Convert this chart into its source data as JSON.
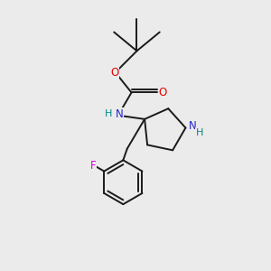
{
  "background_color": "#ebebeb",
  "bond_color": "#1a1a1a",
  "atom_colors": {
    "O": "#e60000",
    "N": "#2222cc",
    "H": "#008888",
    "F": "#dd00dd",
    "C": "#1a1a1a"
  },
  "figsize": [
    3.0,
    3.0
  ],
  "dpi": 100
}
